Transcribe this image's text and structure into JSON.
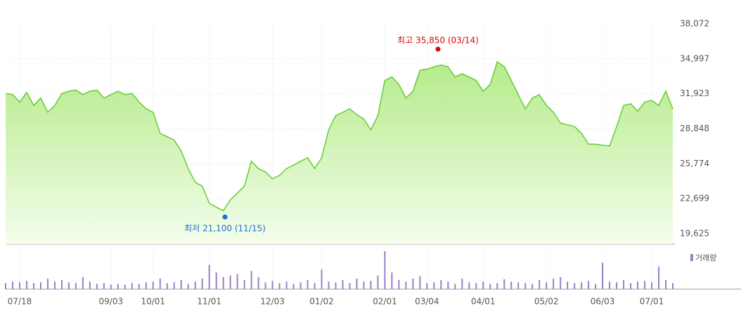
{
  "chart_data": {
    "type": "stock",
    "categories": [
      null,
      null,
      "07/18",
      null,
      null,
      null,
      null,
      null,
      null,
      null,
      null,
      null,
      null,
      null,
      null,
      "09/03",
      null,
      null,
      null,
      null,
      null,
      "10/01",
      null,
      null,
      null,
      null,
      null,
      null,
      null,
      "11/01",
      null,
      null,
      null,
      null,
      null,
      null,
      null,
      null,
      "12/03",
      null,
      null,
      null,
      null,
      null,
      null,
      "01/02",
      null,
      null,
      null,
      null,
      null,
      null,
      null,
      null,
      "02/01",
      null,
      null,
      null,
      null,
      null,
      "03/04",
      null,
      null,
      null,
      null,
      null,
      null,
      null,
      "04/01",
      null,
      null,
      null,
      null,
      null,
      null,
      null,
      null,
      "05/02",
      null,
      null,
      null,
      null,
      null,
      null,
      null,
      "06/03",
      null,
      null,
      null,
      null,
      null,
      null,
      "07/01",
      null,
      null,
      null
    ],
    "series": [
      {
        "name": "price",
        "color": "#66cc33",
        "values": [
          31950,
          31850,
          31200,
          32050,
          30900,
          31550,
          30300,
          30900,
          31950,
          32150,
          32250,
          31850,
          32150,
          32250,
          31550,
          31850,
          32150,
          31850,
          31950,
          31200,
          30600,
          30300,
          28450,
          28150,
          27850,
          26900,
          25350,
          24150,
          23800,
          22300,
          21950,
          21650,
          22600,
          23200,
          23800,
          26000,
          25350,
          25050,
          24450,
          24750,
          25350,
          25650,
          26000,
          26300,
          25350,
          26300,
          28750,
          30000,
          30300,
          30600,
          30100,
          29700,
          28750,
          30000,
          33100,
          33400,
          32750,
          31550,
          32150,
          34000,
          34100,
          34300,
          34450,
          34300,
          33400,
          33700,
          33400,
          33100,
          32150,
          32750,
          34750,
          34300,
          33100,
          31850,
          30600,
          31550,
          31850,
          30900,
          30300,
          29350,
          29200,
          29050,
          28450,
          27500,
          27500,
          27400,
          27350,
          29050,
          30900,
          31050,
          30400,
          31200,
          31350,
          30900,
          32150,
          30600
        ]
      },
      {
        "name": "거래량",
        "color": "#9a7ec8",
        "values": [
          8,
          10,
          9,
          11,
          8,
          9,
          14,
          10,
          12,
          9,
          8,
          16,
          10,
          7,
          8,
          6,
          7,
          6,
          8,
          7,
          9,
          10,
          14,
          8,
          9,
          12,
          7,
          10,
          14,
          32,
          22,
          16,
          18,
          20,
          12,
          24,
          16,
          9,
          11,
          8,
          10,
          7,
          9,
          12,
          8,
          26,
          10,
          9,
          12,
          8,
          14,
          10,
          11,
          18,
          50,
          22,
          12,
          10,
          14,
          17,
          8,
          9,
          12,
          10,
          7,
          14,
          9,
          8,
          10,
          7,
          8,
          13,
          10,
          9,
          8,
          7,
          12,
          9,
          14,
          16,
          10,
          8,
          9,
          11,
          7,
          35,
          10,
          9,
          12,
          8,
          10,
          11,
          9,
          30,
          12,
          8
        ]
      }
    ],
    "ylim": [
      19625,
      38072
    ],
    "yticks": [
      {
        "value": 19625,
        "label": "19,625"
      },
      {
        "value": 22699,
        "label": "22,699"
      },
      {
        "value": 25774,
        "label": "25,774"
      },
      {
        "value": 28848,
        "label": "28,848"
      },
      {
        "value": 31923,
        "label": "31,923"
      },
      {
        "value": 34997,
        "label": "34,997"
      },
      {
        "value": 38072,
        "label": "38,072"
      }
    ],
    "annotations": [
      {
        "text": "최고 35,850 (03/14)",
        "value": 35850,
        "color": "#e00000"
      },
      {
        "text": "최저 21,100 (11/15)",
        "value": 21100,
        "color": "#1f6fd1"
      }
    ]
  }
}
